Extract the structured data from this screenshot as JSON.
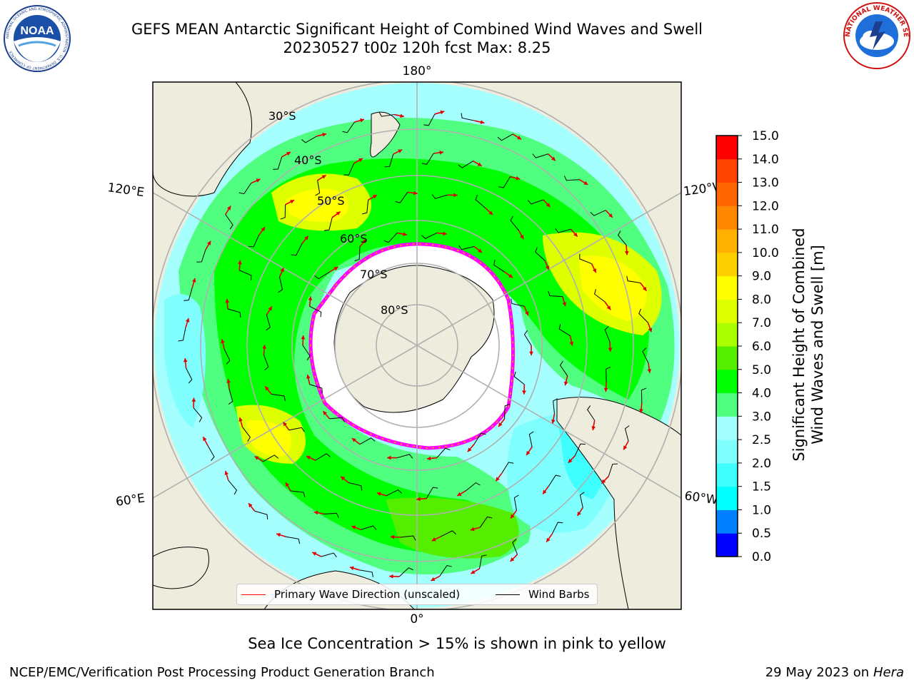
{
  "header": {
    "title_line1": "GEFS MEAN Antarctic Significant Height of Combined Wind Waves and Swell",
    "title_line2": "20230527 t00z 120h fcst   Max: 8.25"
  },
  "logos": {
    "left": {
      "name": "NOAA",
      "text": "NOAA",
      "ring_text": "NATIONAL OCEANIC AND ATMOSPHERIC ADMINISTRATION · U.S. DEPARTMENT OF COMMERCE"
    },
    "right": {
      "name": "National Weather Service",
      "ring_text": "NATIONAL WEATHER SERVICE"
    }
  },
  "map": {
    "projection": "south-polar-stereographic",
    "longitude_labels": {
      "top": "180°",
      "bottom": "0°",
      "upper_left": "120°E",
      "upper_right": "120°W",
      "lower_left": "60°E",
      "lower_right": "60°W"
    },
    "latitude_labels": [
      "30°S",
      "40°S",
      "50°S",
      "60°S",
      "70°S",
      "80°S"
    ],
    "colors": {
      "land": "#eeecdd",
      "ocean_fill_base": "#a6ffff",
      "ice_edge": "#ff00ff",
      "ice_inner": "#ffa500",
      "gridlines": "#b0b0b0"
    },
    "legend": {
      "wave_label": "Primary Wave Direction (unscaled)",
      "wave_color": "#ff0000",
      "barb_label": "Wind Barbs",
      "barb_color": "#000000"
    }
  },
  "colorbar": {
    "label": "Significant Height of Combined Wind Waves and Swell [m]",
    "label_line1": "Significant Height of Combined",
    "label_line2": "Wind Waves and Swell [m]",
    "ticks": [
      "0.0",
      "0.5",
      "1.0",
      "1.5",
      "2.0",
      "2.5",
      "3.0",
      "4.0",
      "5.0",
      "6.0",
      "7.0",
      "8.0",
      "9.0",
      "10.0",
      "11.0",
      "12.0",
      "13.0",
      "14.0",
      "15.0"
    ],
    "colors": [
      "#0000ff",
      "#0080ff",
      "#00ffff",
      "#40ffff",
      "#80ffff",
      "#a6ffff",
      "#50ff80",
      "#00ff00",
      "#55ee00",
      "#aaff00",
      "#ddff00",
      "#ffff00",
      "#ffd000",
      "#ffb000",
      "#ff8800",
      "#ff6600",
      "#ff4400",
      "#ff0000"
    ]
  },
  "footer": {
    "sea_ice_note": "Sea Ice Concentration > 15% is shown in pink to yellow",
    "credit": "NCEP/EMC/Verification Post Processing Product Generation Branch",
    "date_prefix": "29 May 2023 on",
    "machine": "Hera"
  }
}
